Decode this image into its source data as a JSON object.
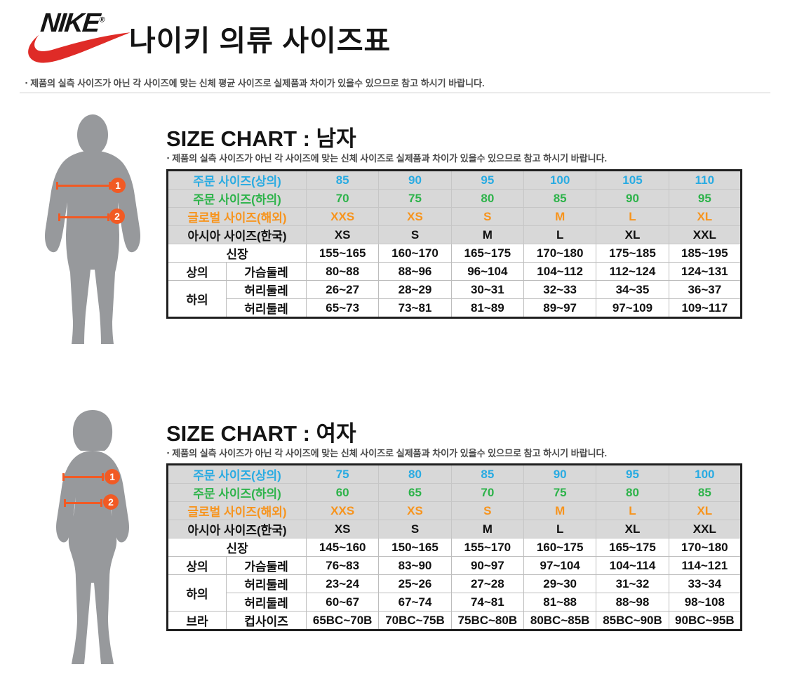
{
  "page": {
    "title": "나이키 의류 사이즈표",
    "note_bullet": "▪",
    "top_note": "제품의 실측 사이즈가 아닌 각 사이즈에 맞는 신체 평균 사이즈로 실제품과 차이가 있을수 있으므로 참고 하시기 바랍니다."
  },
  "logo": {
    "brand": "NIKE",
    "registered": "®"
  },
  "colors": {
    "tops_blue": "#29ABE2",
    "bottoms_green": "#2DB34A",
    "global_orange": "#F7941D",
    "arrow_orange": "#F15A24",
    "swoosh_red": "#DF2B27",
    "header_row_bg": "#D8D8D8",
    "silhouette_gray": "#97999C"
  },
  "sections": [
    {
      "title": "SIZE CHART : 남자",
      "note": "제품의 실측 사이즈가 아닌 각 사이즈에 맞는 신체 사이즈로 실제품과 차이가 있을수 있으므로 참고 하시기 바랍니다.",
      "figure": {
        "badge1": "1",
        "badge2": "2"
      },
      "table": {
        "header_rows": [
          {
            "label": "주문 사이즈(상의)",
            "color": "blue",
            "values": [
              "85",
              "90",
              "95",
              "100",
              "105",
              "110"
            ]
          },
          {
            "label": "주문 사이즈(하의)",
            "color": "green",
            "values": [
              "70",
              "75",
              "80",
              "85",
              "90",
              "95"
            ]
          },
          {
            "label": "글로벌 사이즈(해외)",
            "color": "orange",
            "values": [
              "XXS",
              "XS",
              "S",
              "M",
              "L",
              "XL"
            ]
          },
          {
            "label": "아시아 사이즈(한국)",
            "color": "black",
            "values": [
              "XS",
              "S",
              "M",
              "L",
              "XL",
              "XXL"
            ]
          }
        ],
        "body_rows": [
          {
            "category": "신장",
            "category_colspan": 2,
            "values": [
              "155~165",
              "160~170",
              "165~175",
              "170~180",
              "175~185",
              "185~195"
            ]
          },
          {
            "category": "상의",
            "measure": "가슴둘레",
            "values": [
              "80~88",
              "88~96",
              "96~104",
              "104~112",
              "112~124",
              "124~131"
            ]
          },
          {
            "category": "하의",
            "category_rowspan": 2,
            "measure": "허리둘레",
            "values": [
              "26~27",
              "28~29",
              "30~31",
              "32~33",
              "34~35",
              "36~37"
            ]
          },
          {
            "measure": "허리둘레",
            "values": [
              "65~73",
              "73~81",
              "81~89",
              "89~97",
              "97~109",
              "109~117"
            ]
          }
        ]
      }
    },
    {
      "title": "SIZE CHART : 여자",
      "note": "제품의 실측 사이즈가 아닌 각 사이즈에 맞는 신체 사이즈로 실제품과 차이가 있을수 있으므로 참고 하시기 바랍니다.",
      "figure": {
        "badge1": "1",
        "badge2": "2"
      },
      "table": {
        "header_rows": [
          {
            "label": "주문 사이즈(상의)",
            "color": "blue",
            "values": [
              "75",
              "80",
              "85",
              "90",
              "95",
              "100"
            ]
          },
          {
            "label": "주문 사이즈(하의)",
            "color": "green",
            "values": [
              "60",
              "65",
              "70",
              "75",
              "80",
              "85"
            ]
          },
          {
            "label": "글로벌 사이즈(해외)",
            "color": "orange",
            "values": [
              "XXS",
              "XS",
              "S",
              "M",
              "L",
              "XL"
            ]
          },
          {
            "label": "아시아 사이즈(한국)",
            "color": "black",
            "values": [
              "XS",
              "S",
              "M",
              "L",
              "XL",
              "XXL"
            ]
          }
        ],
        "body_rows": [
          {
            "category": "신장",
            "category_colspan": 2,
            "values": [
              "145~160",
              "150~165",
              "155~170",
              "160~175",
              "165~175",
              "170~180"
            ]
          },
          {
            "category": "상의",
            "measure": "가슴둘레",
            "values": [
              "76~83",
              "83~90",
              "90~97",
              "97~104",
              "104~114",
              "114~121"
            ]
          },
          {
            "category": "하의",
            "category_rowspan": 2,
            "measure": "허리둘레",
            "values": [
              "23~24",
              "25~26",
              "27~28",
              "29~30",
              "31~32",
              "33~34"
            ]
          },
          {
            "measure": "허리둘레",
            "values": [
              "60~67",
              "67~74",
              "74~81",
              "81~88",
              "88~98",
              "98~108"
            ]
          },
          {
            "category": "브라",
            "measure": "컵사이즈",
            "values": [
              "65BC~70B",
              "70BC~75B",
              "75BC~80B",
              "80BC~85B",
              "85BC~90B",
              "90BC~95B"
            ]
          }
        ]
      }
    }
  ]
}
